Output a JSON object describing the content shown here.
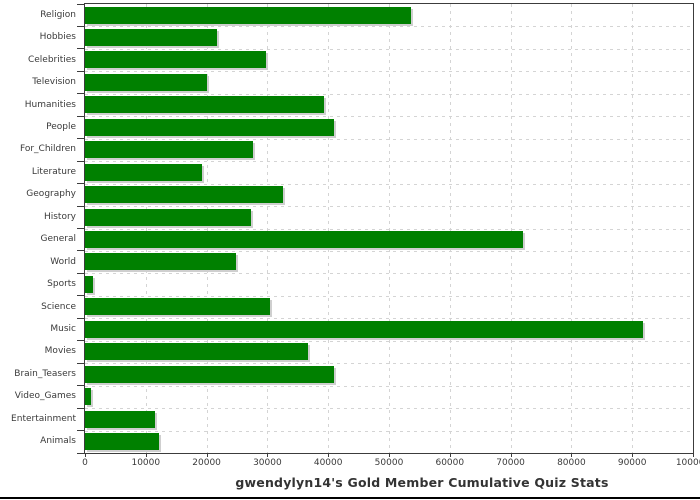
{
  "chart_data": {
    "type": "bar",
    "orientation": "horizontal",
    "title": "gwendylyn14's Gold Member Cumulative Quiz Stats",
    "categories": [
      "Religion",
      "Hobbies",
      "Celebrities",
      "Television",
      "Humanities",
      "People",
      "For_Children",
      "Literature",
      "Geography",
      "History",
      "General",
      "World",
      "Sports",
      "Science",
      "Music",
      "Movies",
      "Brain_Teasers",
      "Video_Games",
      "Entertainment",
      "Animals"
    ],
    "values": [
      53600,
      21700,
      29700,
      20100,
      39300,
      40900,
      27600,
      19200,
      32500,
      27300,
      72100,
      24800,
      1300,
      30400,
      91700,
      36700,
      41000,
      1000,
      11500,
      12100
    ],
    "xlim": [
      0,
      100000
    ],
    "x_ticks": [
      0,
      10000,
      20000,
      30000,
      40000,
      50000,
      60000,
      70000,
      80000,
      90000,
      100000
    ],
    "x_tick_labels": [
      "0",
      "10000",
      "20000",
      "30000",
      "40000",
      "50000",
      "60000",
      "70000",
      "80000",
      "90000",
      "100000"
    ],
    "grid": "dashed vertical and horizontal gridlines",
    "legend": "none",
    "colors": {
      "bar": "#008000",
      "bar_shadow": "#cfcfcf",
      "gridline": "#d4d4d4",
      "frame": "#3c3c3c",
      "tick": "#3c3c3c",
      "label_text": "#3a3a3a",
      "title_text": "#333333",
      "background": "#ffffff",
      "bottom_rule": "#000000"
    }
  }
}
